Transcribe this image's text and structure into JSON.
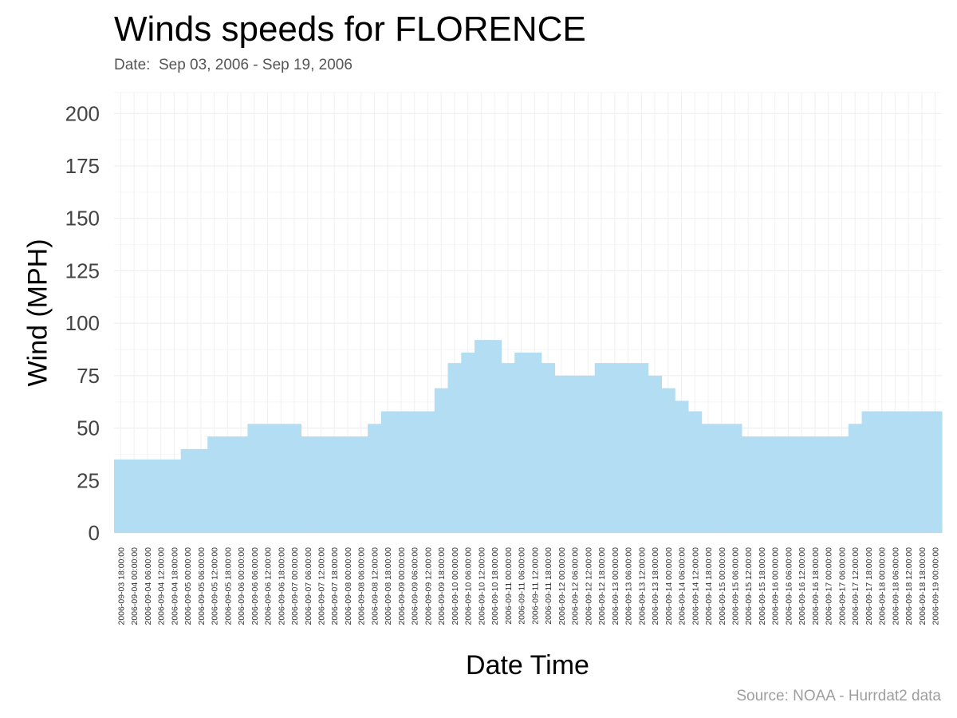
{
  "chart_data": {
    "type": "bar",
    "title": "Winds speeds for FLORENCE",
    "subtitle": "Date:  Sep 03, 2006 - Sep 19, 2006",
    "caption": "Source: NOAA - Hurrdat2 data",
    "xlabel": "Date Time",
    "ylabel": "Wind (MPH)",
    "ylim": [
      0,
      210
    ],
    "yticks": [
      0,
      25,
      50,
      75,
      100,
      125,
      150,
      175,
      200
    ],
    "grid": true,
    "bar_color": "#b3ddf2",
    "categories": [
      "2006-09-03 18:00:00",
      "2006-09-04 00:00:00",
      "2006-09-04 06:00:00",
      "2006-09-04 12:00:00",
      "2006-09-04 18:00:00",
      "2006-09-05 00:00:00",
      "2006-09-05 06:00:00",
      "2006-09-05 12:00:00",
      "2006-09-05 18:00:00",
      "2006-09-06 00:00:00",
      "2006-09-06 06:00:00",
      "2006-09-06 12:00:00",
      "2006-09-06 18:00:00",
      "2006-09-07 00:00:00",
      "2006-09-07 06:00:00",
      "2006-09-07 12:00:00",
      "2006-09-07 18:00:00",
      "2006-09-08 00:00:00",
      "2006-09-08 06:00:00",
      "2006-09-08 12:00:00",
      "2006-09-08 18:00:00",
      "2006-09-09 00:00:00",
      "2006-09-09 06:00:00",
      "2006-09-09 12:00:00",
      "2006-09-09 18:00:00",
      "2006-09-10 00:00:00",
      "2006-09-10 06:00:00",
      "2006-09-10 12:00:00",
      "2006-09-10 18:00:00",
      "2006-09-11 00:00:00",
      "2006-09-11 06:00:00",
      "2006-09-11 12:00:00",
      "2006-09-11 18:00:00",
      "2006-09-12 00:00:00",
      "2006-09-12 06:00:00",
      "2006-09-12 12:00:00",
      "2006-09-12 18:00:00",
      "2006-09-13 00:00:00",
      "2006-09-13 06:00:00",
      "2006-09-13 12:00:00",
      "2006-09-13 18:00:00",
      "2006-09-14 00:00:00",
      "2006-09-14 06:00:00",
      "2006-09-14 12:00:00",
      "2006-09-14 18:00:00",
      "2006-09-15 00:00:00",
      "2006-09-15 06:00:00",
      "2006-09-15 12:00:00",
      "2006-09-15 18:00:00",
      "2006-09-16 00:00:00",
      "2006-09-16 06:00:00",
      "2006-09-16 12:00:00",
      "2006-09-16 18:00:00",
      "2006-09-17 00:00:00",
      "2006-09-17 06:00:00",
      "2006-09-17 12:00:00",
      "2006-09-17 18:00:00",
      "2006-09-18 00:00:00",
      "2006-09-18 06:00:00",
      "2006-09-18 12:00:00",
      "2006-09-18 18:00:00",
      "2006-09-19 00:00:00"
    ],
    "values": [
      35,
      35,
      35,
      35,
      35,
      40,
      40,
      46,
      46,
      46,
      52,
      52,
      52,
      52,
      46,
      46,
      46,
      46,
      46,
      52,
      58,
      58,
      58,
      58,
      69,
      81,
      86,
      92,
      92,
      81,
      86,
      86,
      81,
      75,
      75,
      75,
      81,
      81,
      81,
      81,
      75,
      69,
      63,
      58,
      52,
      52,
      52,
      46,
      46,
      46,
      46,
      46,
      46,
      46,
      46,
      52,
      58,
      58,
      58,
      58,
      58,
      58
    ]
  }
}
